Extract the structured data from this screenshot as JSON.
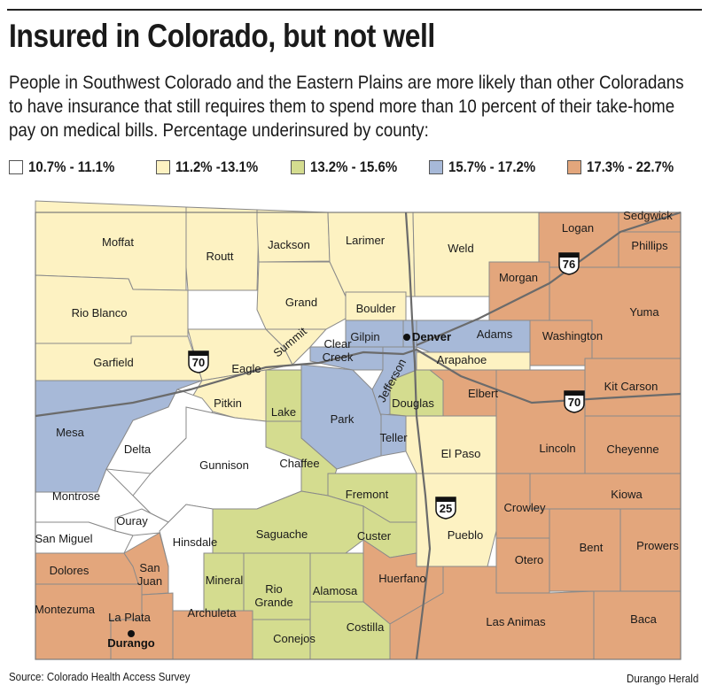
{
  "title": "Insured in Colorado, but not well",
  "description": "People in Southwest Colorado and the Eastern Plains are more likely than other Coloradans to have insurance that still requires them to spend more than 10 percent of their take-home pay on medical bills. Percentage underinsured by county:",
  "legend": [
    {
      "label": "10.7% - 11.1%",
      "color": "#ffffff"
    },
    {
      "label": "11.2% -13.1%",
      "color": "#fdf2c2"
    },
    {
      "label": "13.2% - 15.6%",
      "color": "#d4dc8f"
    },
    {
      "label": "15.7% - 17.2%",
      "color": "#a7b9d8"
    },
    {
      "label": "17.3% - 22.7%",
      "color": "#e3a67c"
    }
  ],
  "counties": [
    {
      "name": "Moffat",
      "band": 1
    },
    {
      "name": "Routt",
      "band": 1
    },
    {
      "name": "Jackson",
      "band": 1
    },
    {
      "name": "Larimer",
      "band": 1
    },
    {
      "name": "Weld",
      "band": 1
    },
    {
      "name": "Logan",
      "band": 4
    },
    {
      "name": "Sedgwick",
      "band": 4
    },
    {
      "name": "Phillips",
      "band": 4
    },
    {
      "name": "Morgan",
      "band": 4
    },
    {
      "name": "Yuma",
      "band": 4
    },
    {
      "name": "Rio Blanco",
      "band": 1
    },
    {
      "name": "Grand",
      "band": 1
    },
    {
      "name": "Boulder",
      "band": 1
    },
    {
      "name": "Gilpin",
      "band": 3
    },
    {
      "name": "Clear Creek",
      "band": 3
    },
    {
      "name": "Denver",
      "band": 3
    },
    {
      "name": "Adams",
      "band": 3
    },
    {
      "name": "Washington",
      "band": 4
    },
    {
      "name": "Garfield",
      "band": 1
    },
    {
      "name": "Eagle",
      "band": 1
    },
    {
      "name": "Summit",
      "band": 1
    },
    {
      "name": "Jefferson",
      "band": 3
    },
    {
      "name": "Arapahoe",
      "band": 1
    },
    {
      "name": "Kit Carson",
      "band": 4
    },
    {
      "name": "Mesa",
      "band": 3
    },
    {
      "name": "Pitkin",
      "band": 1
    },
    {
      "name": "Lake",
      "band": 2
    },
    {
      "name": "Park",
      "band": 3
    },
    {
      "name": "Douglas",
      "band": 2
    },
    {
      "name": "Elbert",
      "band": 4
    },
    {
      "name": "Delta",
      "band": 0
    },
    {
      "name": "Gunnison",
      "band": 0
    },
    {
      "name": "Chaffee",
      "band": 2
    },
    {
      "name": "Teller",
      "band": 3
    },
    {
      "name": "El Paso",
      "band": 1
    },
    {
      "name": "Lincoln",
      "band": 4
    },
    {
      "name": "Cheyenne",
      "band": 4
    },
    {
      "name": "Montrose",
      "band": 0
    },
    {
      "name": "Fremont",
      "band": 2
    },
    {
      "name": "Kiowa",
      "band": 4
    },
    {
      "name": "Ouray",
      "band": 0
    },
    {
      "name": "Crowley",
      "band": 4
    },
    {
      "name": "San Miguel",
      "band": 0
    },
    {
      "name": "Hinsdale",
      "band": 0
    },
    {
      "name": "Saguache",
      "band": 2
    },
    {
      "name": "Custer",
      "band": 2
    },
    {
      "name": "Pueblo",
      "band": 1
    },
    {
      "name": "Otero",
      "band": 4
    },
    {
      "name": "Bent",
      "band": 4
    },
    {
      "name": "Prowers",
      "band": 4
    },
    {
      "name": "Dolores",
      "band": 4
    },
    {
      "name": "San Juan",
      "band": 4
    },
    {
      "name": "Mineral",
      "band": 2
    },
    {
      "name": "Rio Grande",
      "band": 2
    },
    {
      "name": "Alamosa",
      "band": 2
    },
    {
      "name": "Huerfano",
      "band": 4
    },
    {
      "name": "Montezuma",
      "band": 4
    },
    {
      "name": "La Plata",
      "band": 4
    },
    {
      "name": "Archuleta",
      "band": 4
    },
    {
      "name": "Conejos",
      "band": 2
    },
    {
      "name": "Costilla",
      "band": 2
    },
    {
      "name": "Las Animas",
      "band": 4
    },
    {
      "name": "Baca",
      "band": 4
    }
  ],
  "cities": [
    {
      "name": "Denver"
    },
    {
      "name": "Durango"
    }
  ],
  "highways": [
    {
      "label": "70"
    },
    {
      "label": "76"
    },
    {
      "label": "70"
    },
    {
      "label": "25"
    }
  ],
  "source": "Source: Colorado Health Access Survey",
  "credit": "Durango Herald"
}
